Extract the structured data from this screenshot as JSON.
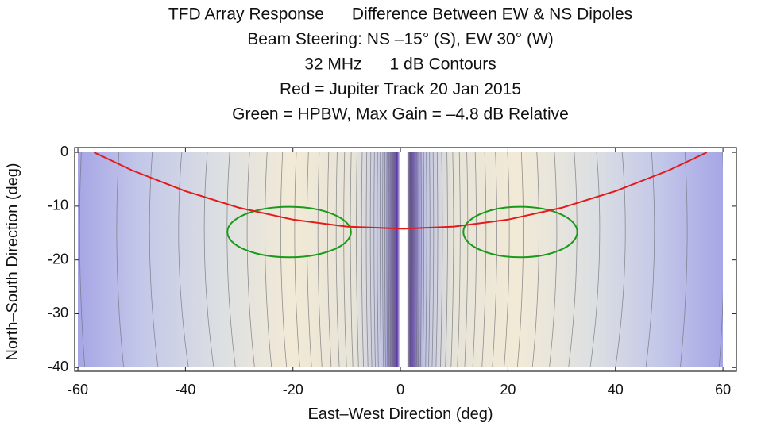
{
  "chart_data": {
    "type": "contour",
    "title_lines": [
      "TFD Array Response      Difference Between EW & NS Dipoles",
      "Beam Steering: NS –15° (S), EW 30° (W)",
      "32 MHz      1 dB Contours",
      "Red = Jupiter Track 20 Jan 2015",
      "Green = HPBW, Max Gain = –4.8 dB Relative"
    ],
    "xlabel": "East–West Direction (deg)",
    "ylabel": "North–South Direction (deg)",
    "xlim": [
      -60.6,
      62.5
    ],
    "ylim": [
      -40.7,
      0.9
    ],
    "xticks": [
      -60,
      -40,
      -20,
      0,
      20,
      40,
      60
    ],
    "yticks": [
      0,
      -10,
      -20,
      -30,
      -40
    ],
    "series": [
      {
        "color": "#e41a1a",
        "x": [
          -57,
          -50,
          -40,
          -30,
          -20,
          -10,
          0.5,
          10,
          20,
          30,
          40,
          50,
          57
        ],
        "values": [
          0,
          -3.3,
          -7.2,
          -10.3,
          -12.5,
          -13.8,
          -14.2,
          -13.8,
          -12.5,
          -10.3,
          -7.2,
          -3.3,
          0
        ]
      }
    ],
    "ellipses": [
      {
        "color": "#1a9a1a",
        "cx": -20.7,
        "cy": -14.8,
        "rx": 11.5,
        "ry": 4.7
      },
      {
        "color": "#1a9a1a",
        "cx": 22.3,
        "cy": -14.8,
        "rx": 10.6,
        "ry": 4.7
      }
    ]
  }
}
